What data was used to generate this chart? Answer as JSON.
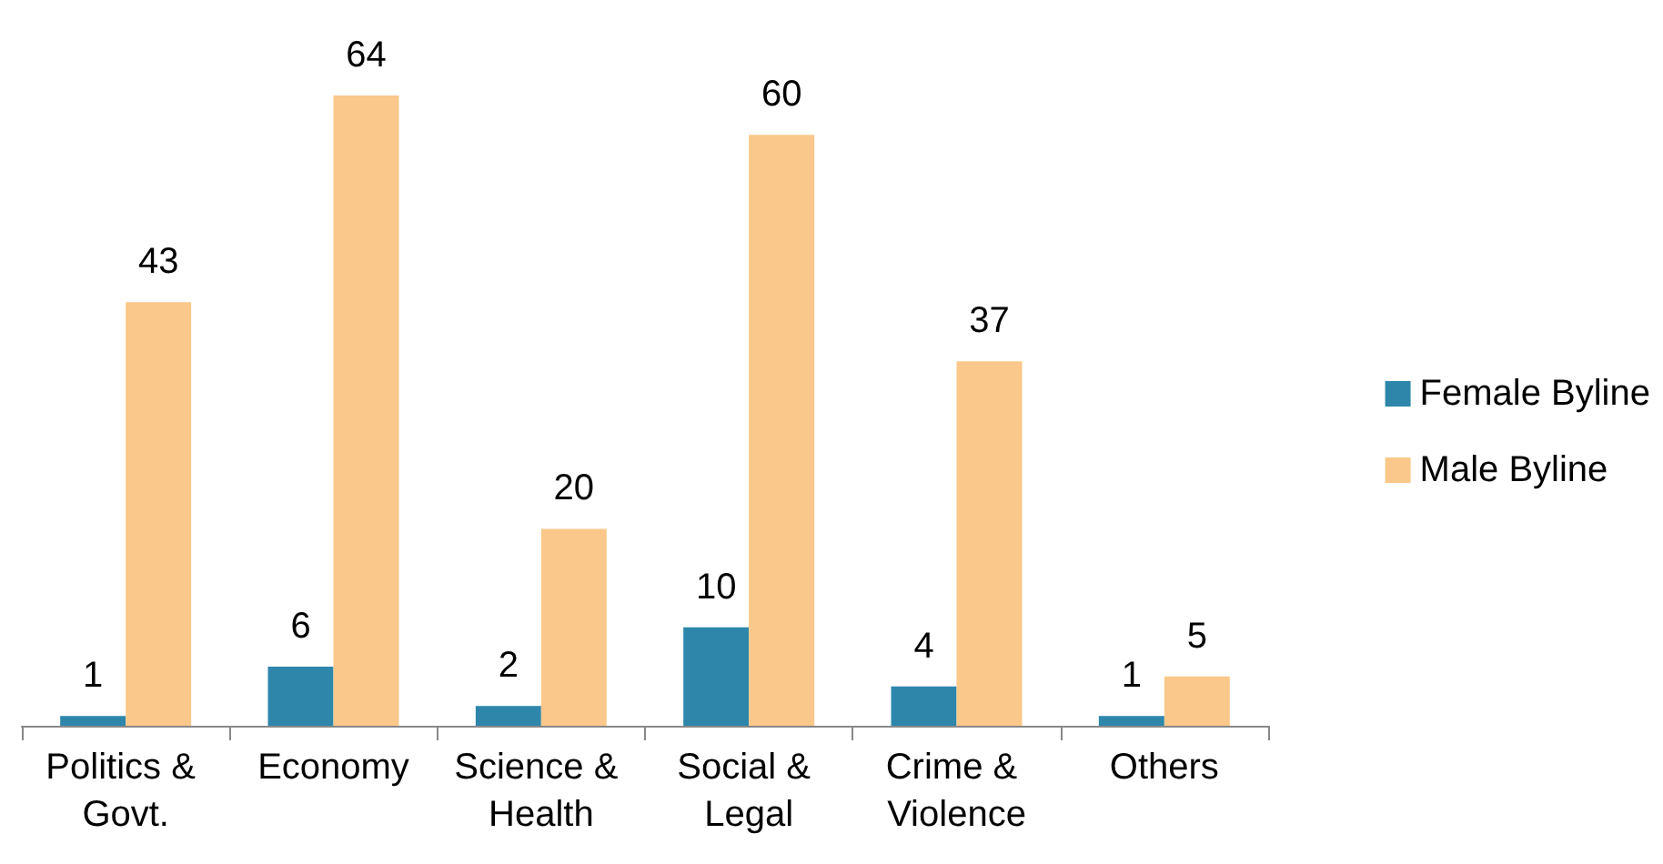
{
  "chart_data": {
    "type": "bar",
    "categories": [
      "Politics & Govt.",
      "Economy",
      "Science & Health",
      "Social & Legal",
      "Crime & Violence",
      "Others"
    ],
    "series": [
      {
        "name": "Female Byline",
        "color": "#2e86ab",
        "values": [
          1,
          6,
          2,
          10,
          4,
          1
        ]
      },
      {
        "name": "Male Byline",
        "color": "#fac88a",
        "values": [
          43,
          64,
          20,
          60,
          37,
          5
        ]
      }
    ],
    "data_labels": true,
    "legend": "right"
  }
}
